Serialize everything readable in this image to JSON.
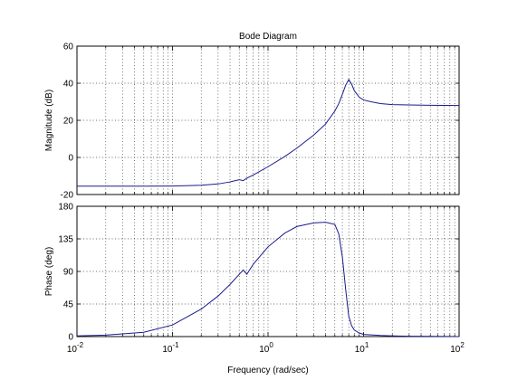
{
  "chart_data": {
    "type": "line",
    "title": "Bode Diagram",
    "xlabel": "Frequency  (rad/sec)",
    "xscale": "log",
    "xlim": [
      0.01,
      100
    ],
    "grid": true,
    "xticks": [
      {
        "base": "10",
        "exp": "-2"
      },
      {
        "base": "10",
        "exp": "-1"
      },
      {
        "base": "10",
        "exp": "0"
      },
      {
        "base": "10",
        "exp": "1"
      },
      {
        "base": "10",
        "exp": "2"
      }
    ],
    "panels": [
      {
        "id": "magnitude",
        "ylabel": "Magnitude (dB)",
        "ylim": [
          -20,
          60
        ],
        "yticks": [
          -20,
          0,
          20,
          40,
          60
        ],
        "series": [
          {
            "color": "#1a1a8c",
            "x": [
              0.01,
              0.05,
              0.1,
              0.2,
              0.3,
              0.4,
              0.5,
              0.55,
              0.6,
              0.7,
              1.0,
              1.5,
              2.0,
              3.0,
              4.0,
              5.0,
              5.5,
              6.0,
              6.5,
              7.0,
              7.5,
              8.0,
              9.0,
              10.0,
              12.0,
              15.0,
              20.0,
              30.0,
              50.0,
              100.0
            ],
            "y": [
              -15.5,
              -15.5,
              -15.4,
              -15.0,
              -14.3,
              -13.2,
              -12.0,
              -12.5,
              -11.2,
              -9.5,
              -5.0,
              0.5,
              5.0,
              12.0,
              18.0,
              25.0,
              29.0,
              34.0,
              39.0,
              42.0,
              39.5,
              36.0,
              32.5,
              31.0,
              30.0,
              29.0,
              28.5,
              28.3,
              28.1,
              28.0
            ]
          }
        ]
      },
      {
        "id": "phase",
        "ylabel": "Phase (deg)",
        "ylim": [
          0,
          180
        ],
        "yticks": [
          0,
          45,
          90,
          135,
          180
        ],
        "series": [
          {
            "color": "#1a1a8c",
            "x": [
              0.01,
              0.02,
              0.05,
              0.1,
              0.2,
              0.3,
              0.4,
              0.5,
              0.55,
              0.6,
              0.7,
              1.0,
              1.5,
              2.0,
              3.0,
              4.0,
              5.0,
              5.5,
              6.0,
              6.5,
              7.0,
              7.5,
              8.0,
              9.0,
              10.0,
              15.0,
              20.0,
              30.0,
              50.0,
              100.0
            ],
            "y": [
              1,
              2,
              6,
              16,
              38,
              56,
              72,
              86,
              92,
              86,
              100,
              124,
              143,
              152,
              157,
              158,
              155,
              142,
              110,
              65,
              28,
              15,
              9,
              5,
              3,
              1.5,
              1,
              0.5,
              0.3,
              0
            ]
          }
        ]
      }
    ]
  }
}
